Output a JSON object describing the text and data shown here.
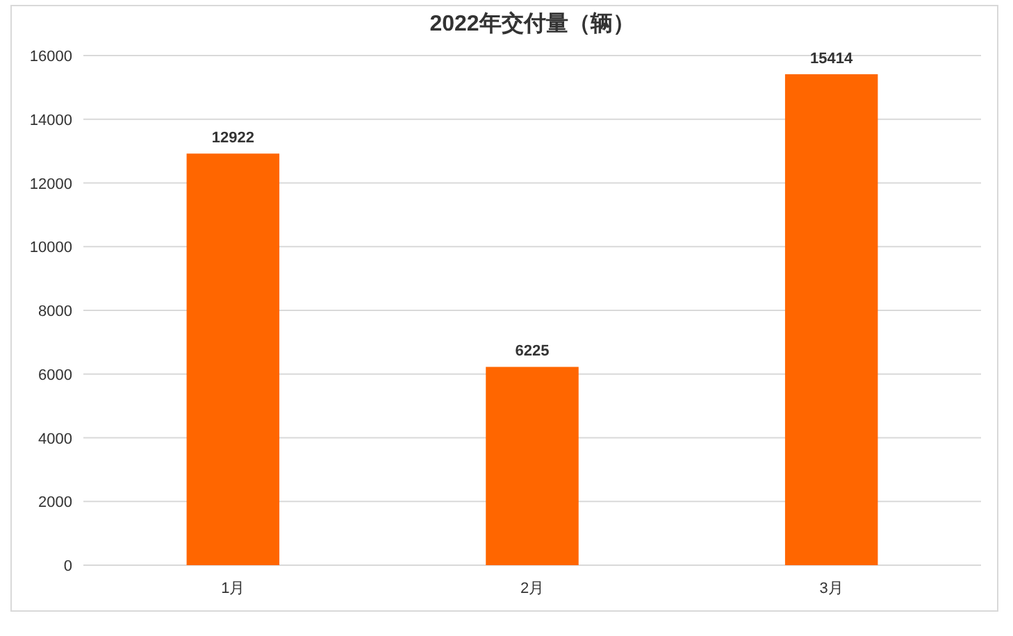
{
  "chart_data": {
    "type": "bar",
    "title": "2022年交付量（辆）",
    "categories": [
      "1月",
      "2月",
      "3月"
    ],
    "values": [
      12922,
      6225,
      15414
    ],
    "color": "#ff6600",
    "ylim": [
      0,
      16000
    ],
    "yticks": [
      0,
      2000,
      4000,
      6000,
      8000,
      10000,
      12000,
      14000,
      16000
    ],
    "grid": "y",
    "data_labels": true
  }
}
